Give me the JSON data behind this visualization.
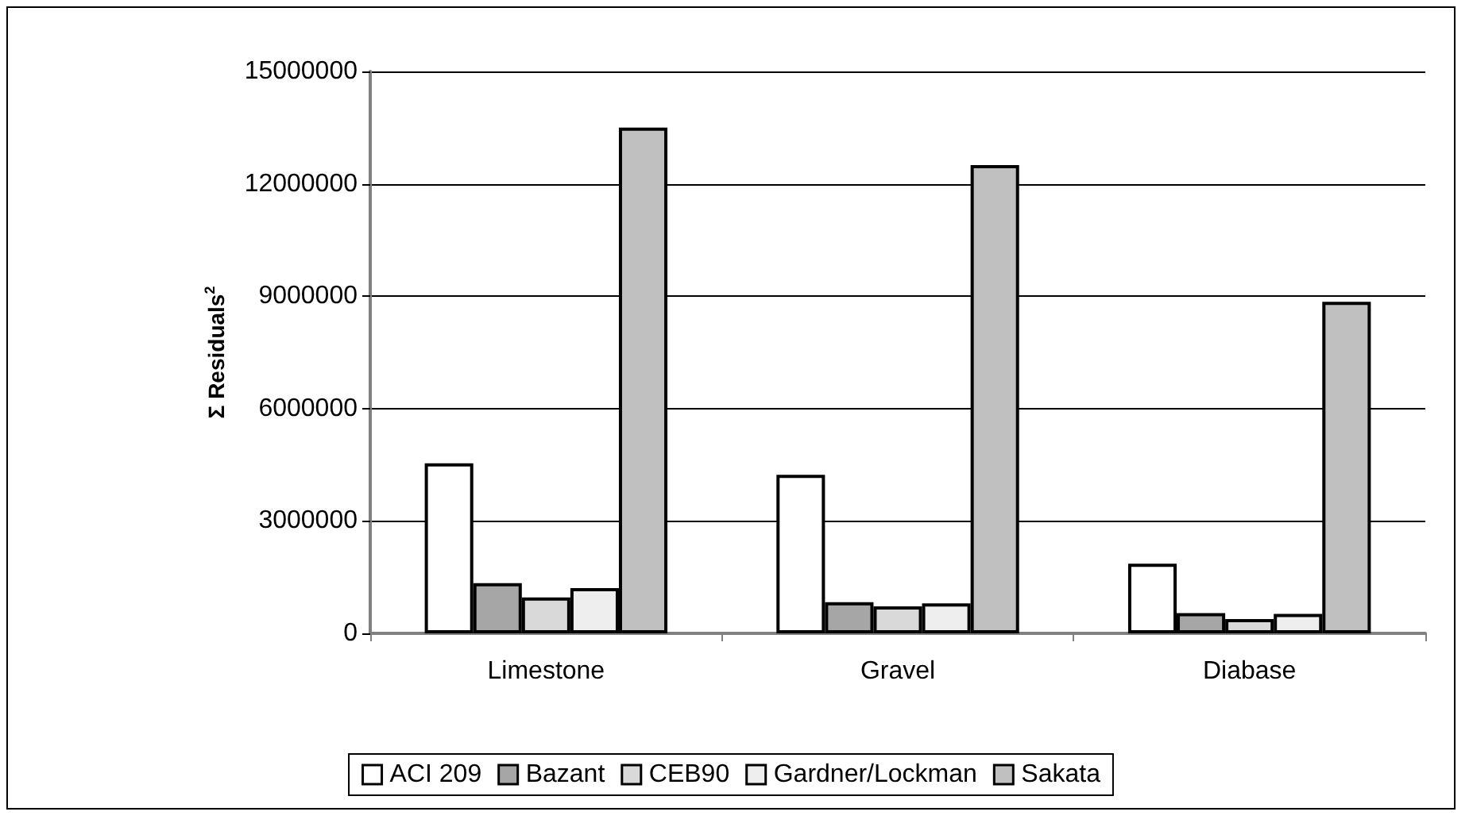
{
  "chart_data": {
    "type": "bar",
    "ylabel": "Σ Residuals$^{2}$",
    "categories": [
      "Limestone",
      "Gravel",
      "Diabase"
    ],
    "series": [
      {
        "name": "ACI 209",
        "color": "#ffffff",
        "values": [
          4540000,
          4230000,
          1860000
        ]
      },
      {
        "name": "Bazant",
        "color": "#a6a6a6",
        "values": [
          1340000,
          830000,
          540000
        ]
      },
      {
        "name": "CEB90",
        "color": "#d9d9d9",
        "values": [
          960000,
          720000,
          380000
        ]
      },
      {
        "name": "Gardner/Lockman",
        "color": "#eeeeee",
        "values": [
          1210000,
          800000,
          520000
        ]
      },
      {
        "name": "Sakata",
        "color": "#c0c0c0",
        "values": [
          13500000,
          12500000,
          8850000
        ]
      }
    ],
    "ylim": [
      0,
      15000000
    ],
    "yticks": [
      0,
      3000000,
      6000000,
      9000000,
      12000000,
      15000000
    ],
    "grid": "y",
    "legend": "bottom"
  }
}
